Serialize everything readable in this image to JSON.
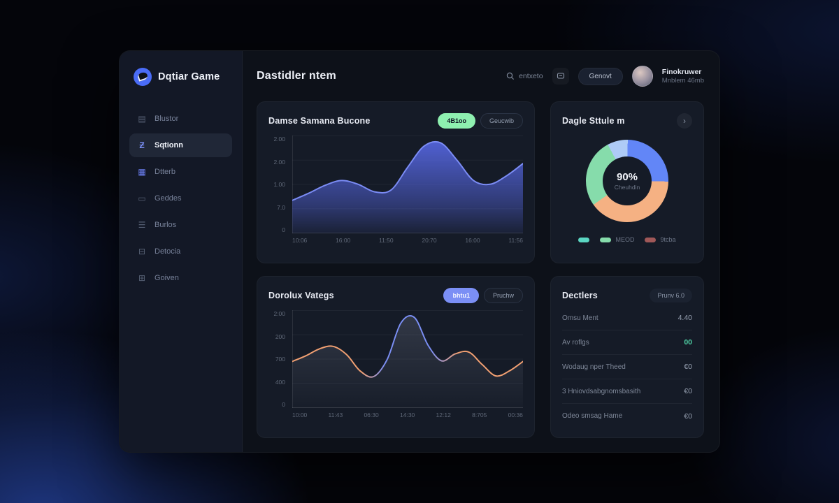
{
  "app": {
    "logo_text": "Dqtiar Game",
    "page_title": "Dastidler ntem"
  },
  "sidebar": {
    "items": [
      {
        "label": "Blustor",
        "icon": "layers-icon",
        "active": false
      },
      {
        "label": "Sqtionn",
        "icon": "sigma-icon",
        "active": true
      },
      {
        "label": "Dtterb",
        "icon": "grid-icon",
        "active": false,
        "icon_color": "#6b7ff2"
      },
      {
        "label": "Geddes",
        "icon": "doc-icon",
        "active": false
      },
      {
        "label": "Burlos",
        "icon": "list-icon",
        "active": false
      },
      {
        "label": "Detocia",
        "icon": "database-icon",
        "active": false
      },
      {
        "label": "Goiven",
        "icon": "window-icon",
        "active": false
      }
    ]
  },
  "header": {
    "search_text": "entxeto",
    "action_button": "Genovt",
    "user": {
      "name": "Finokruwer",
      "meta": "Mnblem 46mb"
    }
  },
  "cards": {
    "area_card": {
      "title": "Damse Samana Bucone",
      "badge_primary": "4B1oo",
      "badge_secondary": "Geucwib"
    },
    "donut_card": {
      "title": "Dagle Sttule m"
    },
    "line_card": {
      "title": "Dorolux Vategs",
      "badge_primary": "bhtu1",
      "badge_secondary": "Pruchw"
    },
    "stats_card": {
      "title": "Dectlers",
      "badge": "Prunv 6.0",
      "rows": [
        {
          "label": "Omsu Ment",
          "value": "4.40",
          "highlight": false
        },
        {
          "label": "Av roflgs",
          "value": "00",
          "highlight": true
        },
        {
          "label": "Wodaug nper Theed",
          "value": "€0",
          "highlight": false
        },
        {
          "label": "3 Hniovdsabgnomsbasith",
          "value": "€0",
          "highlight": false
        },
        {
          "label": "Odeo smsag Hame",
          "value": "€0",
          "highlight": false
        }
      ]
    }
  },
  "chart_data": [
    {
      "type": "area",
      "title": "Damse Samana Bucone",
      "x_ticks": [
        "10:06",
        "16:00",
        "11:50",
        "20:70",
        "16:00",
        "11:56"
      ],
      "y_ticks": [
        "2.00",
        "2.00",
        "1.00",
        "7.0",
        "0"
      ],
      "ylim": [
        0,
        200
      ],
      "grid": true,
      "series": [
        {
          "name": "main",
          "color": "#7b8cf5",
          "fill": "#5566e0",
          "values": [
            70,
            85,
            102,
            112,
            104,
            88,
            92,
            140,
            185,
            192,
            155,
            112,
            104,
            122,
            148
          ]
        }
      ]
    },
    {
      "type": "line",
      "title": "Dorolux Vategs",
      "x_ticks": [
        "10:00",
        "11:43",
        "06:30",
        "14:30",
        "12:12",
        "8:705",
        "00:36"
      ],
      "y_ticks": [
        "2:00",
        "200",
        "700",
        "400",
        "0"
      ],
      "ylim": [
        0,
        300
      ],
      "grid": true,
      "series": [
        {
          "name": "main",
          "colors": [
            "#f2a072",
            "#7b8ff5"
          ],
          "fill": "#9aa0b5",
          "values": [
            148,
            166,
            188,
            196,
            170,
            118,
            100,
            155,
            270,
            288,
            200,
            150,
            172,
            178,
            138,
            102,
            118,
            148
          ]
        }
      ]
    },
    {
      "type": "donut",
      "title": "Dagle Sttule m",
      "center_value": "90%",
      "center_label": "Cheuhdin",
      "start_angle": -28,
      "slices": [
        {
          "name": "lightblue",
          "value": 8,
          "color": "#aecbf7"
        },
        {
          "name": "blue",
          "value": 25,
          "color": "#6286f7"
        },
        {
          "name": "peach",
          "value": 40,
          "color": "#f5b183"
        },
        {
          "name": "green",
          "value": 27,
          "color": "#86dcab"
        }
      ],
      "legend": [
        {
          "label": "",
          "color": "#5bd6c2"
        },
        {
          "label": "MEOD",
          "color": "#86dcab"
        },
        {
          "label": "9tcba",
          "color": "#a05858"
        }
      ]
    }
  ]
}
